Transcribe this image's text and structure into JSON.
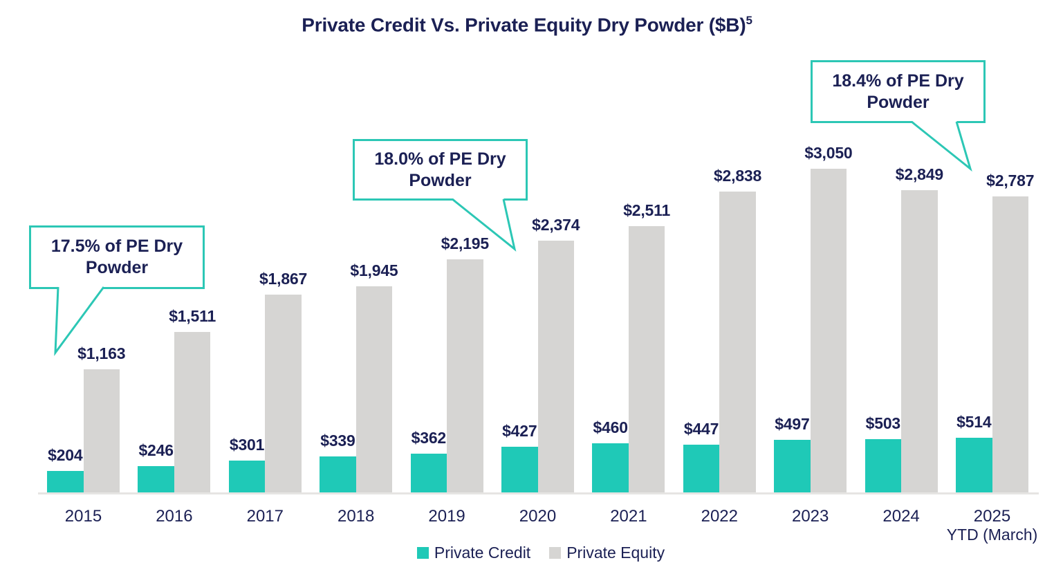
{
  "page": {
    "background": "#FFFFFF"
  },
  "chart_data": {
    "type": "bar",
    "title": "Private Credit Vs. Private Equity Dry Powder ($B)",
    "title_footnote": "5",
    "unit": "$B",
    "categories": [
      {
        "year": "2015",
        "sub": ""
      },
      {
        "year": "2016",
        "sub": ""
      },
      {
        "year": "2017",
        "sub": ""
      },
      {
        "year": "2018",
        "sub": ""
      },
      {
        "year": "2019",
        "sub": ""
      },
      {
        "year": "2020",
        "sub": ""
      },
      {
        "year": "2021",
        "sub": ""
      },
      {
        "year": "2022",
        "sub": ""
      },
      {
        "year": "2023",
        "sub": ""
      },
      {
        "year": "2024",
        "sub": ""
      },
      {
        "year": "2025",
        "sub": "YTD (March)"
      }
    ],
    "series": [
      {
        "name": "Private Credit",
        "color": "#1FC9B7",
        "values": [
          204,
          246,
          301,
          339,
          362,
          427,
          460,
          447,
          497,
          503,
          514
        ],
        "labels": [
          "$204",
          "$246",
          "$301",
          "$339",
          "$362",
          "$427",
          "$460",
          "$447",
          "$497",
          "$503",
          "$514"
        ]
      },
      {
        "name": "Private Equity",
        "color": "#D6D5D3",
        "values": [
          1163,
          1511,
          1867,
          1945,
          2195,
          2374,
          2511,
          2838,
          3050,
          2849,
          2787
        ],
        "labels": [
          "$1,163",
          "$1,511",
          "$1,867",
          "$1,945",
          "$2,195",
          "$2,374",
          "$2,511",
          "$2,838",
          "$3,050",
          "$2,849",
          "$2,787"
        ]
      }
    ],
    "ylim": [
      0,
      3050
    ],
    "grid": false,
    "legend_position": "bottom",
    "annotations": [
      {
        "lines": [
          "17.5% of PE Dry",
          "Powder"
        ],
        "text": "17.5% of PE Dry Powder",
        "target_year": "2015"
      },
      {
        "lines": [
          "18.0% of PE Dry",
          "Powder"
        ],
        "text": "18.0% of PE Dry Powder",
        "target_year": "2020"
      },
      {
        "lines": [
          "18.4% of PE Dry",
          "Powder"
        ],
        "text": "18.4% of PE Dry Powder",
        "target_year": "2025"
      }
    ]
  },
  "colors": {
    "text_navy": "#1B2054",
    "teal": "#1FC9B7",
    "callout_border": "#2CC7B5",
    "bar_gray": "#D6D5D3",
    "axis_line": "#E6E5E3"
  }
}
